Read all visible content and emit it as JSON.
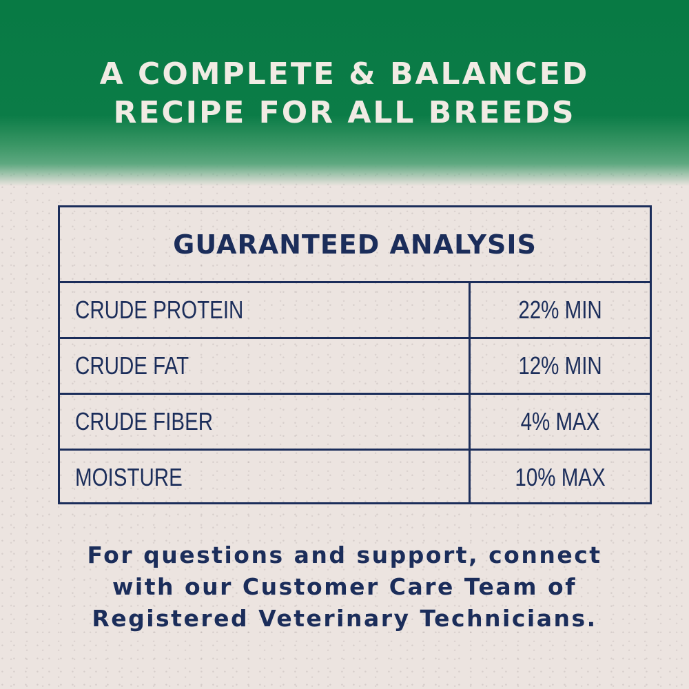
{
  "banner": {
    "title_line1": "A COMPLETE & BALANCED",
    "title_line2": "RECIPE FOR ALL BREEDS"
  },
  "analysis": {
    "title": "GUARANTEED ANALYSIS",
    "rows": [
      {
        "label": "CRUDE PROTEIN",
        "value": "22% MIN"
      },
      {
        "label": "CRUDE FAT",
        "value": "12% MIN"
      },
      {
        "label": "CRUDE FIBER",
        "value": "4% MAX"
      },
      {
        "label": "MOISTURE",
        "value": "10% MAX"
      }
    ]
  },
  "footer": {
    "line1": "For questions and support, connect",
    "line2": "with our Customer Care Team of",
    "line3": "Registered Veterinary Technicians."
  },
  "colors": {
    "banner_green": "#087a44",
    "background": "#ece4e0",
    "navy": "#1b2d5a",
    "banner_text": "#f1ebe4"
  }
}
